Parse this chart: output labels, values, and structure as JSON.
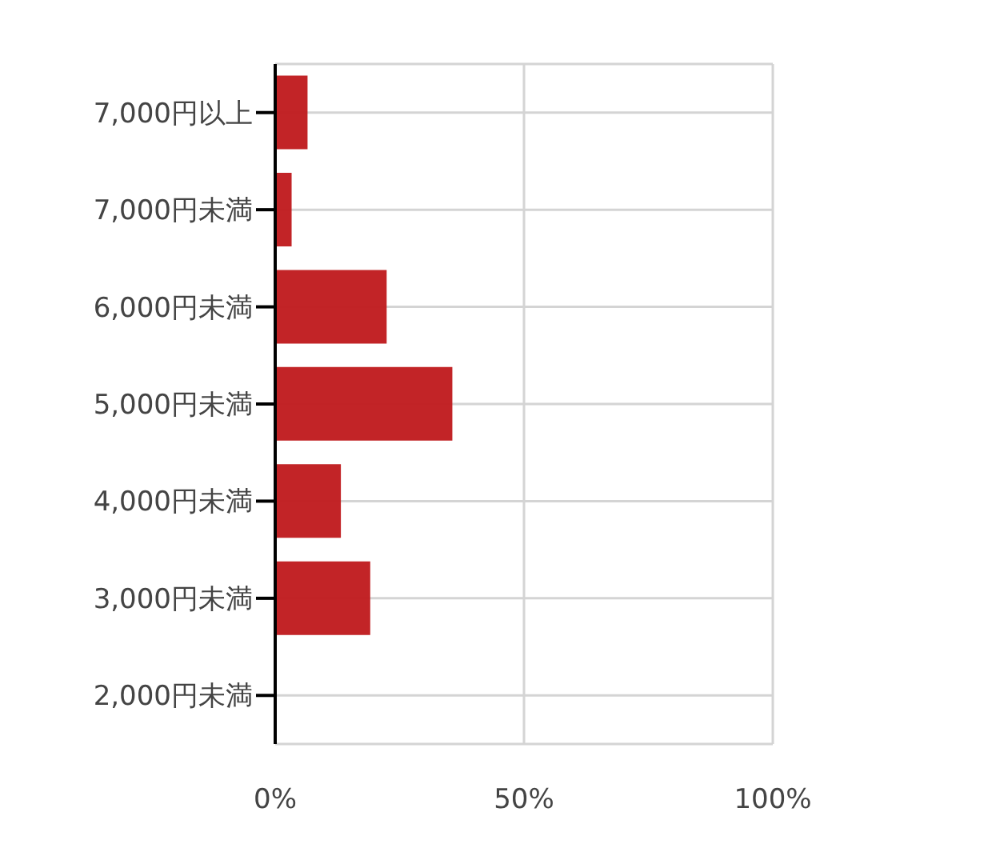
{
  "chart_data": {
    "type": "bar",
    "orientation": "horizontal",
    "categories": [
      "7,000円以上",
      "7,000円未満",
      "6,000円未満",
      "5,000円未満",
      "4,000円未満",
      "3,000円未満",
      "2,000円未満"
    ],
    "values": [
      6.5,
      3.3,
      22.4,
      35.6,
      13.2,
      19.1,
      0
    ],
    "color": "#c01d20",
    "xlim": [
      0,
      100
    ],
    "xticks": [
      {
        "value": 0,
        "label": "0%"
      },
      {
        "value": 50,
        "label": "50%"
      },
      {
        "value": 100,
        "label": "100%"
      }
    ],
    "grid": true
  }
}
